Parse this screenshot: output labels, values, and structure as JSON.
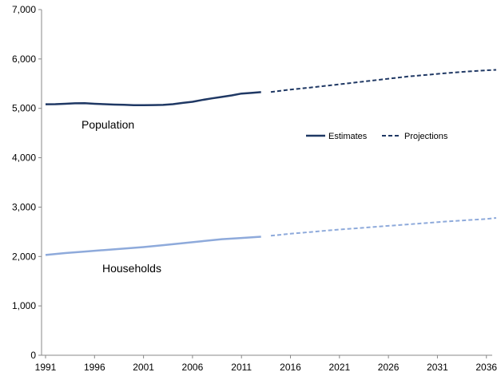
{
  "chart_data": {
    "type": "line",
    "title": "",
    "xlabel": "",
    "ylabel": "",
    "xlim": [
      1991,
      2037
    ],
    "ylim": [
      0,
      7000
    ],
    "x_ticks": [
      1991,
      1996,
      2001,
      2006,
      2011,
      2016,
      2021,
      2026,
      2031,
      2036
    ],
    "x_tick_labels": [
      "1991",
      "1996",
      "2001",
      "2006",
      "2011",
      "2016",
      "2021",
      "2026",
      "2031",
      "2036"
    ],
    "y_ticks": [
      0,
      1000,
      2000,
      3000,
      4000,
      5000,
      6000,
      7000
    ],
    "y_tick_labels": [
      "0",
      "1,000",
      "2,000",
      "3,000",
      "4,000",
      "5,000",
      "6,000",
      "7,000"
    ],
    "grid": false,
    "legend": {
      "position": "center-right",
      "entries": [
        {
          "label": "Estimates",
          "style": "solid"
        },
        {
          "label": "Projections",
          "style": "dashed"
        }
      ]
    },
    "labels": {
      "population": "Population",
      "households": "Households"
    },
    "series": [
      {
        "group": "population",
        "kind": "estimates",
        "color": "#1f3864",
        "x": [
          1991,
          1992,
          1993,
          1994,
          1995,
          1996,
          1997,
          1998,
          1999,
          2000,
          2001,
          2002,
          2003,
          2004,
          2005,
          2006,
          2007,
          2008,
          2009,
          2010,
          2011,
          2012,
          2013
        ],
        "values": [
          5083,
          5085,
          5092,
          5102,
          5104,
          5092,
          5084,
          5077,
          5072,
          5063,
          5064,
          5066,
          5069,
          5084,
          5110,
          5133,
          5170,
          5202,
          5232,
          5262,
          5300,
          5313,
          5328
        ]
      },
      {
        "group": "population",
        "kind": "projections",
        "color": "#1f3864",
        "x": [
          2014,
          2016,
          2018,
          2020,
          2022,
          2024,
          2026,
          2028,
          2030,
          2032,
          2034,
          2036,
          2037
        ],
        "values": [
          5330,
          5380,
          5420,
          5465,
          5510,
          5555,
          5600,
          5645,
          5680,
          5715,
          5745,
          5770,
          5780
        ]
      },
      {
        "group": "households",
        "kind": "estimates",
        "color": "#8eaadb",
        "x": [
          1991,
          1993,
          1995,
          1997,
          1999,
          2001,
          2003,
          2005,
          2007,
          2009,
          2011,
          2013
        ],
        "values": [
          2030,
          2070,
          2100,
          2130,
          2160,
          2190,
          2230,
          2270,
          2310,
          2350,
          2375,
          2400
        ]
      },
      {
        "group": "households",
        "kind": "projections",
        "color": "#8eaadb",
        "x": [
          2014,
          2016,
          2018,
          2020,
          2022,
          2024,
          2026,
          2028,
          2030,
          2032,
          2034,
          2036,
          2037
        ],
        "values": [
          2420,
          2460,
          2495,
          2530,
          2560,
          2590,
          2620,
          2650,
          2680,
          2710,
          2735,
          2760,
          2780
        ]
      }
    ]
  }
}
